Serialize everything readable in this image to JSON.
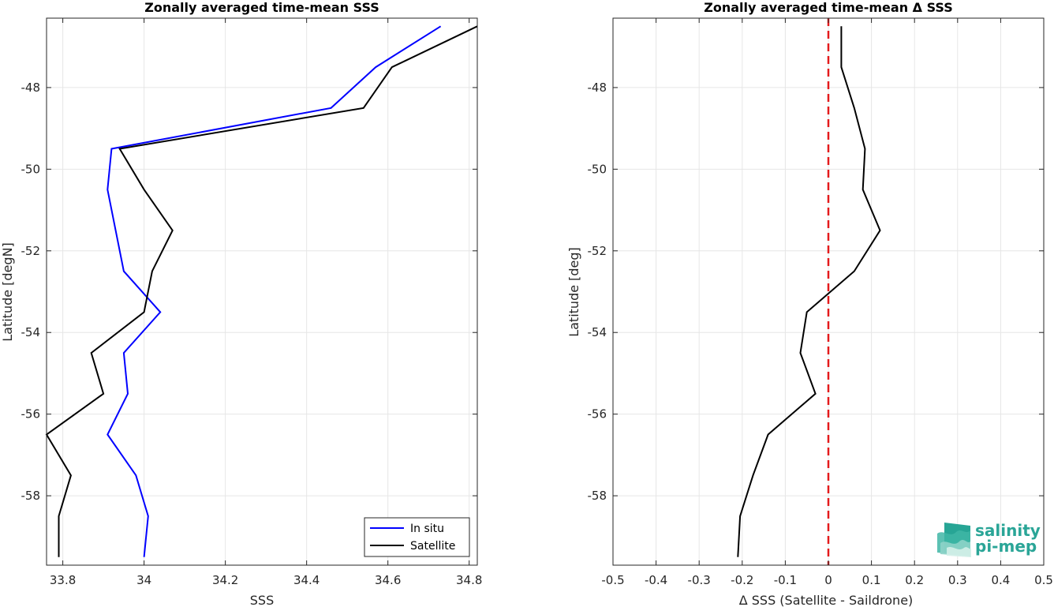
{
  "chart_data": [
    {
      "type": "line",
      "title": "Zonally averaged time-mean SSS",
      "xlabel": "SSS",
      "ylabel": "Latitude [degN]",
      "xlim": [
        33.76,
        34.82
      ],
      "ylim": [
        -59.7,
        -46.3
      ],
      "xticks": [
        33.8,
        34,
        34.2,
        34.4,
        34.6,
        34.8
      ],
      "xtick_labels": [
        "33.8",
        "34",
        "34.2",
        "34.4",
        "34.6",
        "34.8"
      ],
      "yticks": [
        -58,
        -56,
        -54,
        -52,
        -50,
        -48
      ],
      "ytick_labels": [
        "-58",
        "-56",
        "-54",
        "-52",
        "-50",
        "-48"
      ],
      "grid": true,
      "legend_position": "bottom-right",
      "series": [
        {
          "name": "In situ",
          "color": "#0000ff",
          "x": [
            34.73,
            34.57,
            34.46,
            33.92,
            33.91,
            33.93,
            33.95,
            34.04,
            33.95,
            33.96,
            33.91,
            33.98,
            34.01,
            34.0
          ],
          "y": [
            -46.5,
            -47.5,
            -48.5,
            -49.5,
            -50.5,
            -51.5,
            -52.5,
            -53.5,
            -54.5,
            -55.5,
            -56.5,
            -57.5,
            -58.5,
            -59.5
          ]
        },
        {
          "name": "Satellite",
          "color": "#000000",
          "x": [
            34.82,
            34.61,
            34.54,
            33.94,
            34.0,
            34.07,
            34.02,
            34.0,
            33.87,
            33.9,
            33.76,
            33.82,
            33.79,
            33.79
          ],
          "y": [
            -46.5,
            -47.5,
            -48.5,
            -49.5,
            -50.5,
            -51.5,
            -52.5,
            -53.5,
            -54.5,
            -55.5,
            -56.5,
            -57.5,
            -58.5,
            -59.5
          ]
        }
      ]
    },
    {
      "type": "line",
      "title": "Zonally averaged time-mean Δ SSS",
      "xlabel": "Δ SSS (Satellite - Saildrone)",
      "ylabel": "Latitude [deg]",
      "xlim": [
        -0.5,
        0.5
      ],
      "ylim": [
        -59.7,
        -46.3
      ],
      "xticks": [
        -0.5,
        -0.4,
        -0.3,
        -0.2,
        -0.1,
        0,
        0.1,
        0.2,
        0.3,
        0.4,
        0.5
      ],
      "xtick_labels": [
        "-0.5",
        "-0.4",
        "-0.3",
        "-0.2",
        "-0.1",
        "0",
        "0.1",
        "0.2",
        "0.3",
        "0.4",
        "0.5"
      ],
      "yticks": [
        -58,
        -56,
        -54,
        -52,
        -50,
        -48
      ],
      "ytick_labels": [
        "-58",
        "-56",
        "-54",
        "-52",
        "-50",
        "-48"
      ],
      "grid": true,
      "reference_line": {
        "x": 0,
        "color": "#e41a1c",
        "style": "dashed"
      },
      "series": [
        {
          "color": "#000000",
          "x": [
            0.03,
            0.03,
            0.06,
            0.085,
            0.08,
            0.12,
            0.06,
            -0.05,
            -0.065,
            -0.03,
            -0.14,
            -0.175,
            -0.205,
            -0.21
          ],
          "y": [
            -46.5,
            -47.5,
            -48.5,
            -49.5,
            -50.5,
            -51.5,
            -52.5,
            -53.5,
            -54.5,
            -55.5,
            -56.5,
            -57.5,
            -58.5,
            -59.5
          ]
        }
      ]
    }
  ],
  "logo": {
    "line1": "salinity",
    "line2": "pi-mep",
    "color": "#2aa597"
  }
}
